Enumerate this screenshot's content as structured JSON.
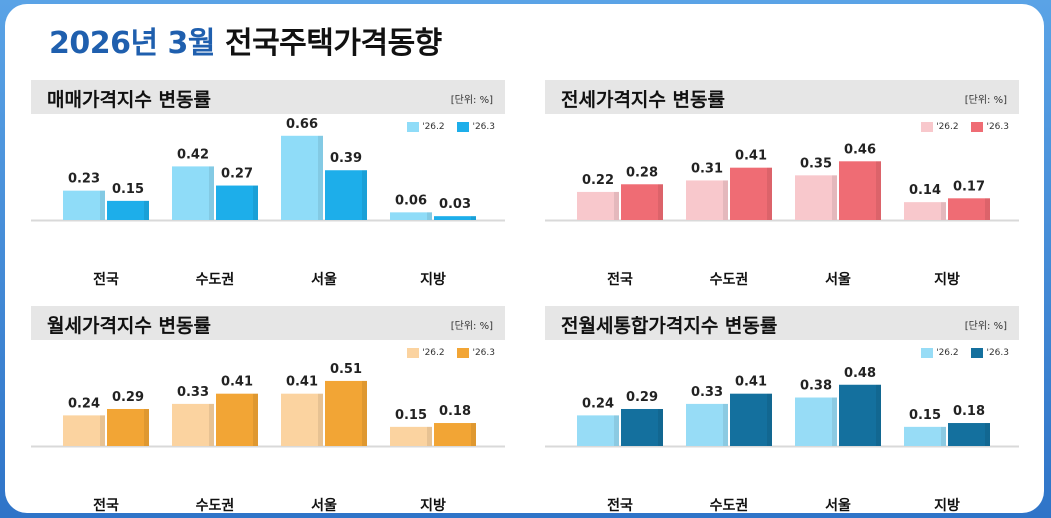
{
  "title": {
    "highlight": "2026년 3월",
    "rest": "전국주택가격동향"
  },
  "chart_data": [
    {
      "type": "bar",
      "title": "매매가격지수 변동률",
      "unit": "[단위: %]",
      "categories": [
        "전국",
        "수도권",
        "서울",
        "지방"
      ],
      "series": [
        {
          "name": "'26.2",
          "values": [
            0.23,
            0.42,
            0.66,
            0.06
          ],
          "color": "#8fdcf8"
        },
        {
          "name": "'26.3",
          "values": [
            0.15,
            0.27,
            0.39,
            0.03
          ],
          "color": "#1daeea"
        }
      ]
    },
    {
      "type": "bar",
      "title": "전세가격지수 변동률",
      "unit": "[단위: %]",
      "categories": [
        "전국",
        "수도권",
        "서울",
        "지방"
      ],
      "series": [
        {
          "name": "'26.2",
          "values": [
            0.22,
            0.31,
            0.35,
            0.14
          ],
          "color": "#f8c8cc"
        },
        {
          "name": "'26.3",
          "values": [
            0.28,
            0.41,
            0.46,
            0.17
          ],
          "color": "#ef6c74"
        }
      ]
    },
    {
      "type": "bar",
      "title": "월세가격지수 변동률",
      "unit": "[단위: %]",
      "categories": [
        "전국",
        "수도권",
        "서울",
        "지방"
      ],
      "series": [
        {
          "name": "'26.2",
          "values": [
            0.24,
            0.33,
            0.41,
            0.15
          ],
          "color": "#fbd3a0"
        },
        {
          "name": "'26.3",
          "values": [
            0.29,
            0.41,
            0.51,
            0.18
          ],
          "color": "#f2a535"
        }
      ]
    },
    {
      "type": "bar",
      "title": "전월세통합가격지수 변동률",
      "unit": "[단위: %]",
      "categories": [
        "전국",
        "수도권",
        "서울",
        "지방"
      ],
      "series": [
        {
          "name": "'26.2",
          "values": [
            0.24,
            0.33,
            0.38,
            0.15
          ],
          "color": "#97dcf6"
        },
        {
          "name": "'26.3",
          "values": [
            0.29,
            0.41,
            0.48,
            0.18
          ],
          "color": "#14709e"
        }
      ]
    }
  ]
}
